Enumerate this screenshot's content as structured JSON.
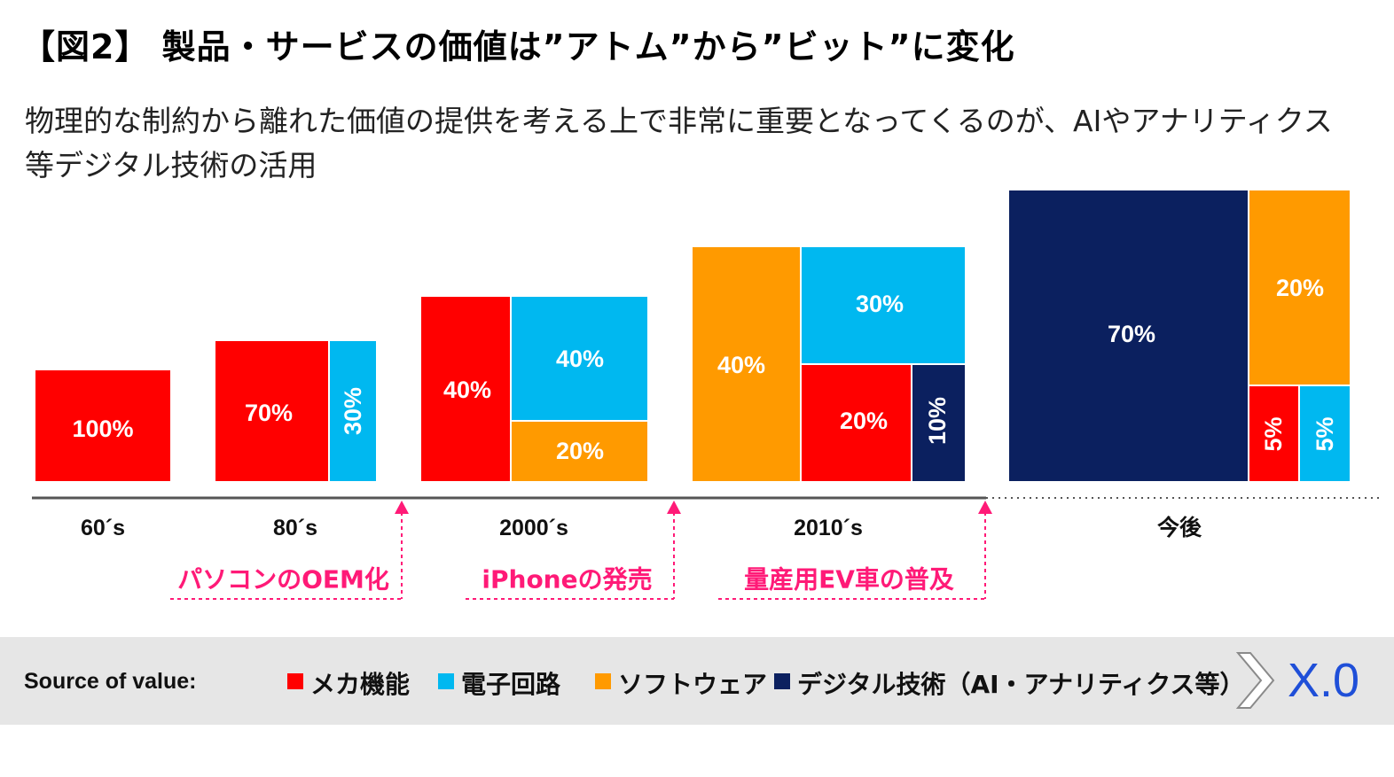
{
  "title": "【図2】 製品・サービスの価値は”アトム”から”ビット”に変化",
  "subtitle": "物理的な制約から離れた価値の提供を考える上で非常に重要となってくるのが、AIやアナリティクス等デジタル技術の活用",
  "colors": {
    "mecha": "#ff0000",
    "electronic": "#00b8f0",
    "software": "#ff9a00",
    "digital": "#0b205f",
    "event": "#ff1a77",
    "axis": "#555555"
  },
  "chart_data": {
    "type": "treemap",
    "periods": [
      {
        "label": "60´s",
        "segments": [
          {
            "category": "mecha",
            "value": 100,
            "label": "100%"
          }
        ]
      },
      {
        "label": "80´s",
        "segments": [
          {
            "category": "mecha",
            "value": 70,
            "label": "70%"
          },
          {
            "category": "electronic",
            "value": 30,
            "label": "30%"
          }
        ]
      },
      {
        "label": "2000´s",
        "segments": [
          {
            "category": "mecha",
            "value": 40,
            "label": "40%"
          },
          {
            "category": "electronic",
            "value": 40,
            "label": "40%"
          },
          {
            "category": "software",
            "value": 20,
            "label": "20%"
          }
        ]
      },
      {
        "label": "2010´s",
        "segments": [
          {
            "category": "software",
            "value": 40,
            "label": "40%"
          },
          {
            "category": "electronic",
            "value": 30,
            "label": "30%"
          },
          {
            "category": "mecha",
            "value": 20,
            "label": "20%"
          },
          {
            "category": "digital",
            "value": 10,
            "label": "10%"
          }
        ]
      },
      {
        "label": "今後",
        "segments": [
          {
            "category": "digital",
            "value": 70,
            "label": "70%"
          },
          {
            "category": "software",
            "value": 20,
            "label": "20%"
          },
          {
            "category": "mecha",
            "value": 5,
            "label": "5%"
          },
          {
            "category": "electronic",
            "value": 5,
            "label": "5%"
          }
        ]
      }
    ],
    "events": [
      {
        "label": "パソコンのOEM化",
        "between": [
          "80´s",
          "2000´s"
        ]
      },
      {
        "label": "iPhoneの発売",
        "between": [
          "2000´s",
          "2010´s"
        ]
      },
      {
        "label": "量産用EV車の普及",
        "between": [
          "2010´s",
          "今後"
        ]
      }
    ]
  },
  "legend": {
    "label": "Source of value:",
    "items": [
      {
        "category": "mecha",
        "label": "メカ機能"
      },
      {
        "category": "electronic",
        "label": "電子回路"
      },
      {
        "category": "software",
        "label": "ソフトウェア"
      },
      {
        "category": "digital",
        "label": "デジタル技術（AI・アナリティクス等）"
      }
    ],
    "suffix": "X.0"
  }
}
